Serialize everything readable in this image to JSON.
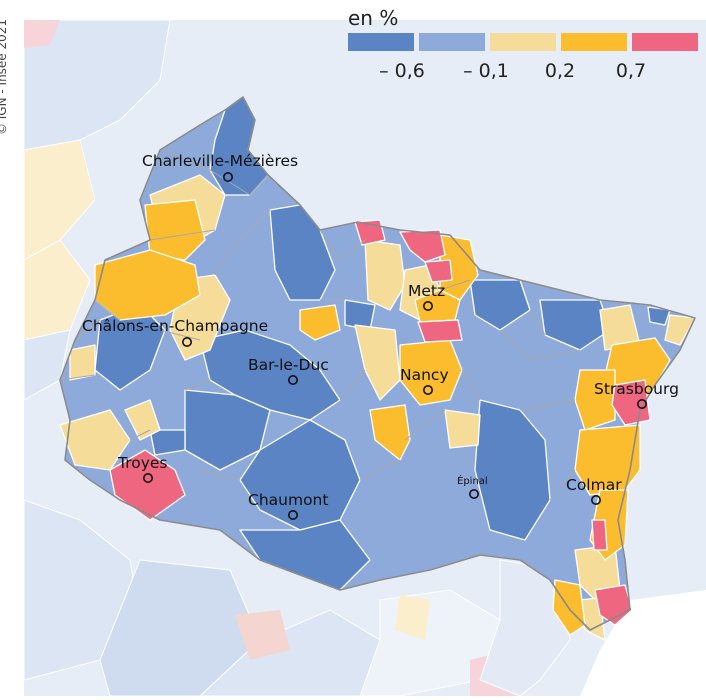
{
  "credit": "© IGN - Insee 2021",
  "legend": {
    "title": "en %",
    "classes": [
      {
        "color": "#5b84c4"
      },
      {
        "color": "#8eaadb"
      },
      {
        "color": "#f5dc98"
      },
      {
        "color": "#fbbd2e"
      },
      {
        "color": "#ee6680"
      }
    ],
    "thresholds": [
      "– 0,6",
      "– 0,1",
      "0,2",
      "0,7"
    ]
  },
  "cities": [
    {
      "name": "Charleville-Mézières",
      "icon": "circle-marker"
    },
    {
      "name": "Châlons-en-Champagne",
      "icon": "circle-marker"
    },
    {
      "name": "Bar-le-Duc",
      "icon": "circle-marker"
    },
    {
      "name": "Metz",
      "icon": "circle-marker"
    },
    {
      "name": "Nancy",
      "icon": "circle-marker"
    },
    {
      "name": "Strasbourg",
      "icon": "circle-marker"
    },
    {
      "name": "Troyes",
      "icon": "circle-marker"
    },
    {
      "name": "Chaumont",
      "icon": "circle-marker"
    },
    {
      "name": "Épinal",
      "icon": "circle-marker"
    },
    {
      "name": "Colmar",
      "icon": "circle-marker"
    }
  ]
}
